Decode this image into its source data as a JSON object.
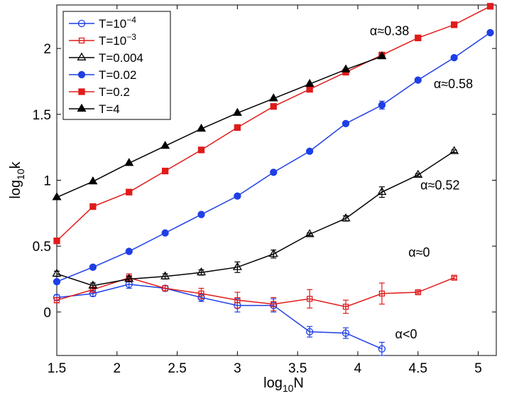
{
  "chart_data": {
    "type": "line",
    "xlabel": "log",
    "xlabel_sub": "10",
    "xlabel_tail": "N",
    "ylabel": "log",
    "ylabel_sub": "10",
    "ylabel_tail": "k",
    "xlim": [
      1.5,
      5.15
    ],
    "ylim": [
      -0.33,
      2.33
    ],
    "x_ticks": [
      1.5,
      2,
      2.5,
      3,
      3.5,
      4,
      4.5,
      5
    ],
    "x_tick_labels": [
      "1.5",
      "2",
      "2.5",
      "3",
      "3.5",
      "4",
      "4.5",
      "5"
    ],
    "y_ticks": [
      0,
      0.5,
      1,
      1.5,
      2
    ],
    "y_tick_labels": [
      "0",
      "0.5",
      "1",
      "1.5",
      "2"
    ],
    "grid": false,
    "legend_position": "top-left",
    "series": [
      {
        "name_base": "T=10",
        "name_sup": "−4",
        "color": "#1f3fe6",
        "marker": "circle-open",
        "x": [
          1.5,
          1.8,
          2.1,
          2.4,
          2.7,
          3.0,
          3.3,
          3.6,
          3.9,
          4.2
        ],
        "y": [
          0.11,
          0.14,
          0.21,
          0.18,
          0.11,
          0.05,
          0.05,
          -0.15,
          -0.16,
          -0.28
        ],
        "err": [
          0.02,
          0.02,
          0.03,
          0.02,
          0.03,
          0.05,
          0.05,
          0.04,
          0.04,
          0.05
        ]
      },
      {
        "name_base": "T=10",
        "name_sup": "−3",
        "color": "#e01b1b",
        "marker": "square-open",
        "x": [
          1.5,
          1.8,
          2.1,
          2.4,
          2.7,
          3.0,
          3.3,
          3.6,
          3.9,
          4.2,
          4.5,
          4.8
        ],
        "y": [
          0.09,
          0.17,
          0.26,
          0.18,
          0.14,
          0.09,
          0.06,
          0.1,
          0.04,
          0.14,
          0.15,
          0.26
        ],
        "err": [
          0.02,
          0.02,
          0.03,
          0.02,
          0.04,
          0.06,
          0.05,
          0.07,
          0.05,
          0.08,
          0.01,
          0.01
        ]
      },
      {
        "name": "T=0.004",
        "color": "#000000",
        "marker": "triangle-open",
        "x": [
          1.5,
          1.8,
          2.1,
          2.4,
          2.7,
          3.0,
          3.3,
          3.6,
          3.9,
          4.2,
          4.5,
          4.8
        ],
        "y": [
          0.29,
          0.2,
          0.25,
          0.27,
          0.3,
          0.34,
          0.44,
          0.59,
          0.71,
          0.91,
          1.04,
          1.22
        ],
        "err": [
          0.02,
          0.02,
          0.02,
          0.02,
          0.02,
          0.04,
          0.03,
          0.01,
          0.02,
          0.04,
          0.01,
          0.01
        ]
      },
      {
        "name": "T=0.02",
        "color": "#1f3fe6",
        "marker": "circle-filled",
        "x": [
          1.5,
          1.8,
          2.1,
          2.4,
          2.7,
          3.0,
          3.3,
          3.6,
          3.9,
          4.2,
          4.5,
          4.8,
          5.1
        ],
        "y": [
          0.23,
          0.34,
          0.46,
          0.6,
          0.74,
          0.88,
          1.06,
          1.22,
          1.43,
          1.57,
          1.76,
          1.93,
          2.12
        ],
        "err": [
          0.01,
          0.01,
          0.01,
          0.01,
          0.01,
          0.01,
          0.01,
          0.01,
          0.01,
          0.03,
          0.01,
          0.01,
          0.01
        ]
      },
      {
        "name": "T=0.2",
        "color": "#e01b1b",
        "marker": "square-filled",
        "x": [
          1.5,
          1.8,
          2.1,
          2.4,
          2.7,
          3.0,
          3.3,
          3.6,
          3.9,
          4.2,
          4.5,
          4.8,
          5.1
        ],
        "y": [
          0.54,
          0.8,
          0.91,
          1.07,
          1.23,
          1.4,
          1.56,
          1.69,
          1.82,
          1.95,
          2.08,
          2.18,
          2.32
        ],
        "err": [
          0.01,
          0.01,
          0.01,
          0.01,
          0.01,
          0.01,
          0.01,
          0.01,
          0.01,
          0.01,
          0.01,
          0.01,
          0.01
        ]
      },
      {
        "name": "T=4",
        "color": "#000000",
        "marker": "triangle-filled",
        "x": [
          1.5,
          1.8,
          2.1,
          2.4,
          2.7,
          3.0,
          3.3,
          3.6,
          3.9,
          4.2
        ],
        "y": [
          0.87,
          0.99,
          1.13,
          1.26,
          1.39,
          1.51,
          1.62,
          1.73,
          1.84,
          1.94
        ],
        "err": [
          0,
          0,
          0,
          0,
          0,
          0,
          0,
          0,
          0,
          0
        ]
      }
    ],
    "annotations": [
      {
        "text": "α≈0.38",
        "x": 4.1,
        "y": 2.1
      },
      {
        "text": "α≈0.58",
        "x": 4.63,
        "y": 1.7
      },
      {
        "text": "α≈0.52",
        "x": 4.52,
        "y": 0.93
      },
      {
        "text": "α≈0",
        "x": 4.42,
        "y": 0.42
      },
      {
        "text": "α<0",
        "x": 4.31,
        "y": -0.2
      }
    ]
  }
}
